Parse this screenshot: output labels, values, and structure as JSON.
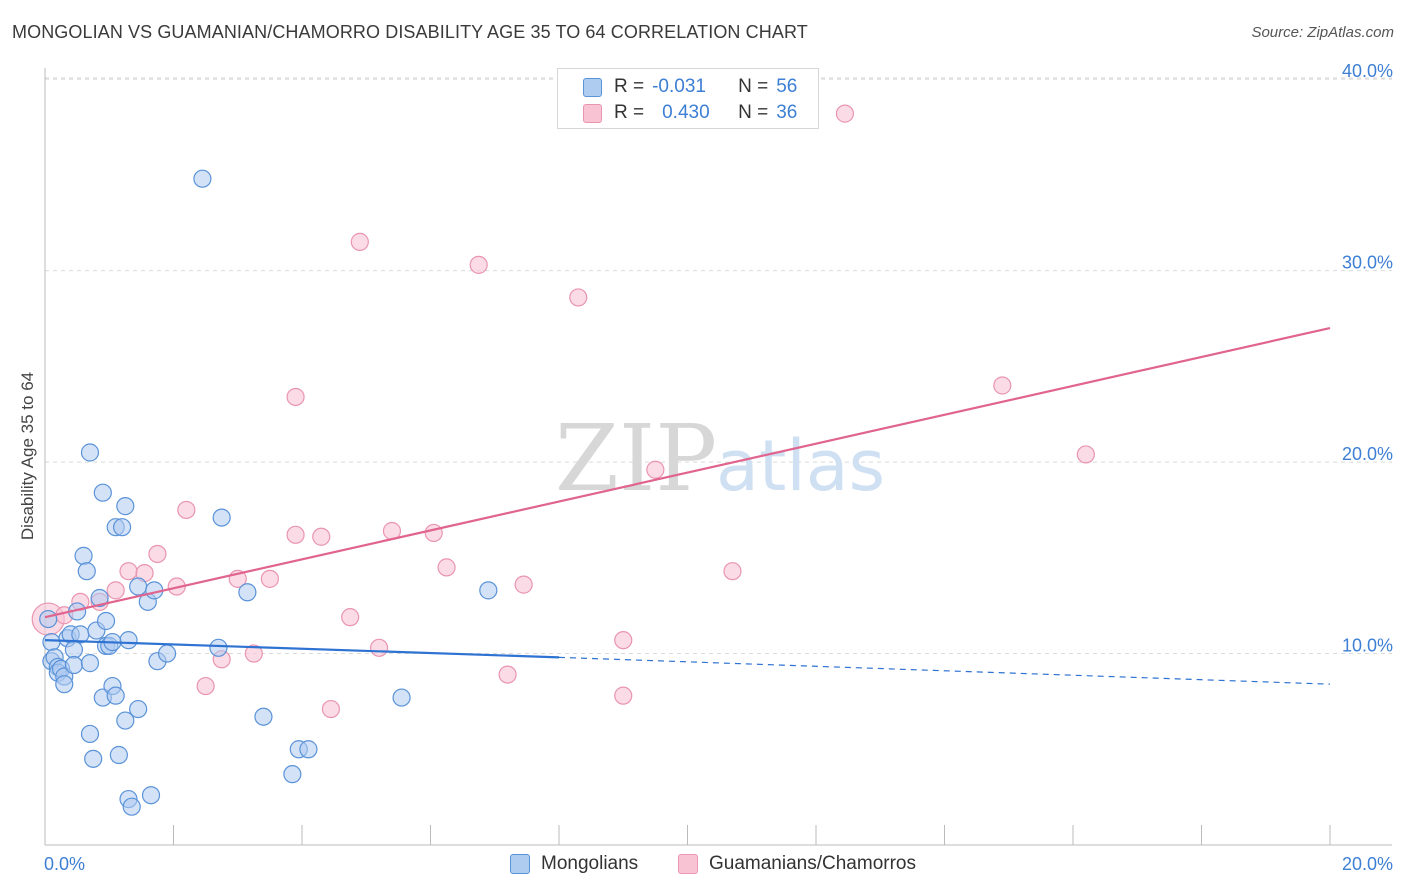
{
  "header": {
    "title": "MONGOLIAN VS GUAMANIAN/CHAMORRO DISABILITY AGE 35 TO 64 CORRELATION CHART",
    "source": "Source: ZipAtlas.com"
  },
  "watermark": {
    "zip": "ZIP",
    "atlas": "atlas"
  },
  "legend": {
    "rows": [
      {
        "r_label": "R =",
        "r_value": "-0.031",
        "n_label": "N =",
        "n_value": "56"
      },
      {
        "r_label": "R =",
        "r_value": "0.430",
        "n_label": "N =",
        "n_value": "36"
      }
    ]
  },
  "bottom_legend": {
    "items": [
      "Mongolians",
      "Guamanians/Chamorros"
    ]
  },
  "colors": {
    "blue_fill": "#aecbf0",
    "blue_stroke": "#5b93d8",
    "blue_line": "#2e72d2",
    "pink_fill": "#f8c3d3",
    "pink_stroke": "#e995b0",
    "pink_line": "#e0648e",
    "axis_text": "#3d7fd4",
    "grid": "#d9d9d9"
  },
  "chart_data": {
    "type": "scatter",
    "title": "MONGOLIAN VS GUAMANIAN/CHAMORRO DISABILITY AGE 35 TO 64 CORRELATION CHART",
    "xlabel": "",
    "ylabel": "Disability Age 35 to 64",
    "xlim": [
      0,
      20
    ],
    "ylim": [
      0,
      41
    ],
    "x_tick_labels": [
      "0.0%",
      "20.0%"
    ],
    "y_ticks": [
      10,
      20,
      30,
      40
    ],
    "y_tick_labels": [
      "10.0%",
      "20.0%",
      "30.0%",
      "40.0%"
    ],
    "grid": true,
    "legend_position": "top-center",
    "series": [
      {
        "name": "Mongolians",
        "r": -0.031,
        "n": 56,
        "trend": {
          "x": [
            0,
            8
          ],
          "y": [
            10.7,
            9.8
          ],
          "dashed_to": [
            20,
            8.4
          ]
        },
        "points": [
          [
            0.1,
            10.6
          ],
          [
            0.1,
            9.6
          ],
          [
            0.15,
            9.8
          ],
          [
            0.2,
            9.3
          ],
          [
            0.2,
            9.0
          ],
          [
            0.25,
            9.2
          ],
          [
            0.3,
            8.8
          ],
          [
            0.3,
            8.4
          ],
          [
            0.35,
            10.8
          ],
          [
            0.4,
            11.0
          ],
          [
            0.45,
            10.2
          ],
          [
            0.45,
            9.4
          ],
          [
            0.5,
            12.2
          ],
          [
            0.55,
            11.0
          ],
          [
            0.6,
            15.1
          ],
          [
            0.65,
            14.3
          ],
          [
            0.7,
            9.5
          ],
          [
            0.7,
            5.8
          ],
          [
            0.75,
            4.5
          ],
          [
            0.7,
            20.5
          ],
          [
            0.8,
            11.2
          ],
          [
            0.85,
            12.9
          ],
          [
            0.9,
            18.4
          ],
          [
            0.9,
            7.7
          ],
          [
            0.95,
            10.4
          ],
          [
            0.95,
            11.7
          ],
          [
            1.0,
            10.4
          ],
          [
            1.05,
            8.3
          ],
          [
            1.1,
            7.8
          ],
          [
            1.1,
            16.6
          ],
          [
            1.15,
            4.7
          ],
          [
            1.2,
            16.6
          ],
          [
            1.25,
            17.7
          ],
          [
            1.3,
            10.7
          ],
          [
            1.25,
            6.5
          ],
          [
            1.3,
            2.4
          ],
          [
            1.35,
            2.0
          ],
          [
            1.45,
            13.5
          ],
          [
            1.45,
            7.1
          ],
          [
            1.6,
            12.7
          ],
          [
            1.65,
            2.6
          ],
          [
            1.7,
            13.3
          ],
          [
            1.75,
            9.6
          ],
          [
            1.9,
            10.0
          ],
          [
            2.45,
            34.8
          ],
          [
            2.7,
            10.3
          ],
          [
            2.75,
            17.1
          ],
          [
            3.15,
            13.2
          ],
          [
            3.4,
            6.7
          ],
          [
            3.85,
            3.7
          ],
          [
            3.95,
            5.0
          ],
          [
            4.1,
            5.0
          ],
          [
            5.55,
            7.7
          ],
          [
            6.9,
            13.3
          ],
          [
            0.05,
            11.8
          ],
          [
            1.05,
            10.6
          ]
        ]
      },
      {
        "name": "Guamanians/Chamorros",
        "r": 0.43,
        "n": 36,
        "trend": {
          "x": [
            0,
            20
          ],
          "y": [
            11.9,
            27.0
          ]
        },
        "points": [
          [
            0.05,
            11.8
          ],
          [
            0.3,
            12.0
          ],
          [
            0.55,
            12.7
          ],
          [
            0.85,
            12.7
          ],
          [
            1.1,
            13.3
          ],
          [
            1.3,
            14.3
          ],
          [
            1.55,
            14.2
          ],
          [
            1.75,
            15.2
          ],
          [
            2.05,
            13.5
          ],
          [
            2.2,
            17.5
          ],
          [
            2.5,
            8.3
          ],
          [
            2.75,
            9.7
          ],
          [
            3.0,
            13.9
          ],
          [
            3.25,
            10.0
          ],
          [
            3.5,
            13.9
          ],
          [
            3.9,
            16.2
          ],
          [
            3.9,
            23.4
          ],
          [
            4.3,
            16.1
          ],
          [
            4.45,
            7.1
          ],
          [
            4.75,
            11.9
          ],
          [
            4.9,
            31.5
          ],
          [
            5.2,
            10.3
          ],
          [
            5.4,
            16.4
          ],
          [
            6.05,
            16.3
          ],
          [
            6.25,
            14.5
          ],
          [
            6.75,
            30.3
          ],
          [
            7.2,
            8.9
          ],
          [
            7.45,
            13.6
          ],
          [
            8.3,
            28.6
          ],
          [
            9.0,
            10.7
          ],
          [
            9.0,
            7.8
          ],
          [
            9.5,
            19.6
          ],
          [
            10.7,
            14.3
          ],
          [
            12.45,
            38.2
          ],
          [
            14.9,
            24.0
          ],
          [
            16.2,
            20.4
          ]
        ]
      }
    ]
  }
}
